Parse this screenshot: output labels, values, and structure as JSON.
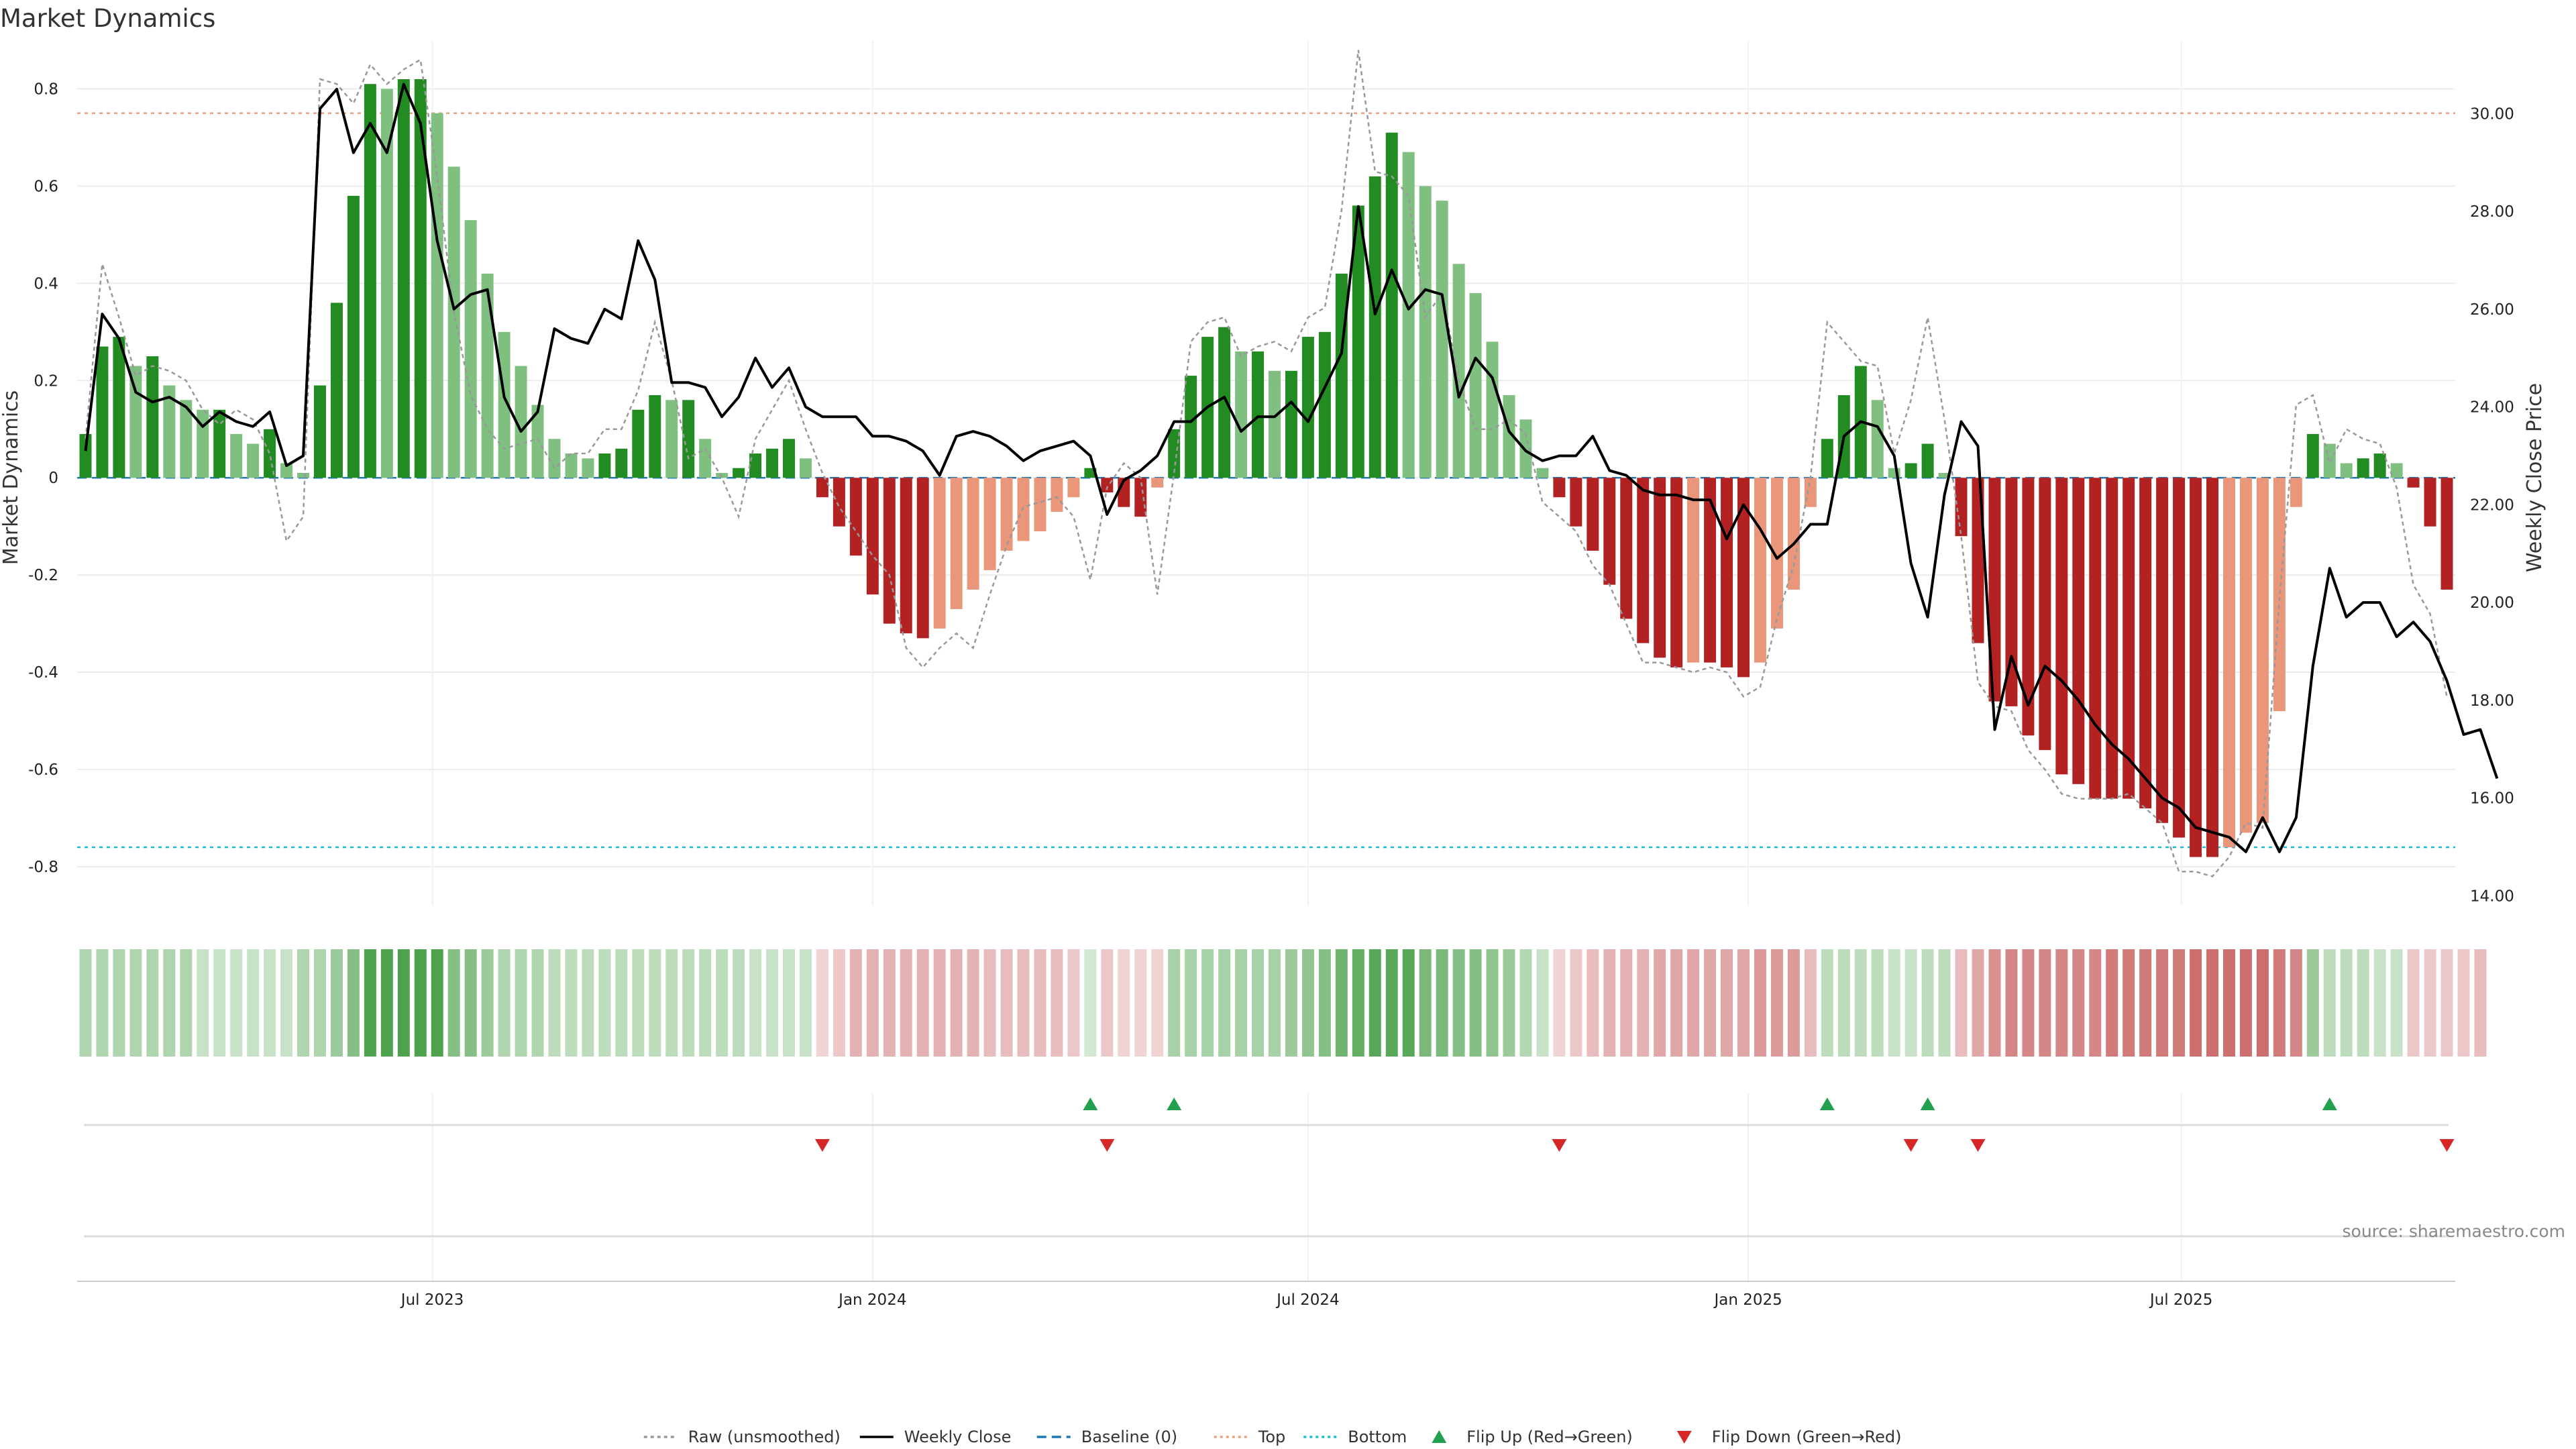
{
  "chart_data": {
    "type": "bar",
    "title": "Market Dynamics",
    "ylabel": "Market Dynamics",
    "y2label": "Weekly Close Price",
    "ylim": [
      -0.88,
      0.9
    ],
    "y2lim": [
      13.8,
      31.5
    ],
    "yticks": [
      "0.8",
      "0.6",
      "0.4",
      "0.2",
      "0",
      "-0.2",
      "-0.4",
      "-0.6",
      "-0.8"
    ],
    "y2ticks": [
      "30.00",
      "28.00",
      "26.00",
      "24.00",
      "22.00",
      "20.00",
      "18.00",
      "16.00",
      "14.00"
    ],
    "xticks": [
      {
        "label": "Jul 2023",
        "date": "2023-07-01"
      },
      {
        "label": "Jan 2024",
        "date": "2024-01-01"
      },
      {
        "label": "Jul 2024",
        "date": "2024-07-01"
      },
      {
        "label": "Jan 2025",
        "date": "2025-01-01"
      },
      {
        "label": "Jul 2025",
        "date": "2025-07-01"
      }
    ],
    "first_week": "2023-02-06",
    "top": 0.75,
    "bottom": -0.76,
    "baseline": 0,
    "grid": true,
    "legend_position": "bottom",
    "source": "source: sharemaestro.com",
    "colors": {
      "strong_up": "#228b22",
      "weak_up": "#7fbf7f",
      "strong_down": "#b22222",
      "weak_down": "#e9967a",
      "raw_line": "#999999",
      "close_line": "#000000",
      "baseline": "#1f77b4",
      "top_line": "#e8a27c",
      "bottom_line": "#17becf",
      "flip_up": "#22a050",
      "flip_down": "#d62728"
    },
    "bars": [
      0.09,
      0.27,
      0.29,
      0.23,
      0.25,
      0.19,
      0.16,
      0.14,
      0.14,
      0.09,
      0.07,
      0.1,
      0.03,
      0.01,
      0.19,
      0.36,
      0.58,
      0.81,
      0.8,
      0.82,
      0.82,
      0.75,
      0.64,
      0.53,
      0.42,
      0.3,
      0.23,
      0.15,
      0.08,
      0.05,
      0.04,
      0.05,
      0.06,
      0.14,
      0.17,
      0.16,
      0.16,
      0.08,
      0.01,
      0.02,
      0.05,
      0.06,
      0.08,
      0.04,
      -0.04,
      -0.1,
      -0.16,
      -0.24,
      -0.3,
      -0.32,
      -0.33,
      -0.31,
      -0.27,
      -0.23,
      -0.19,
      -0.15,
      -0.13,
      -0.11,
      -0.07,
      -0.04,
      0.02,
      -0.03,
      -0.06,
      -0.08,
      -0.02,
      0.1,
      0.21,
      0.29,
      0.31,
      0.26,
      0.26,
      0.22,
      0.22,
      0.29,
      0.3,
      0.42,
      0.56,
      0.62,
      0.71,
      0.67,
      0.6,
      0.57,
      0.44,
      0.38,
      0.28,
      0.17,
      0.12,
      0.02,
      -0.04,
      -0.1,
      -0.15,
      -0.22,
      -0.29,
      -0.34,
      -0.37,
      -0.39,
      -0.38,
      -0.38,
      -0.39,
      -0.41,
      -0.38,
      -0.31,
      -0.23,
      -0.06,
      0.08,
      0.17,
      0.23,
      0.16,
      0.02,
      0.03,
      0.07,
      0.01,
      -0.12,
      -0.34,
      -0.46,
      -0.47,
      -0.53,
      -0.56,
      -0.61,
      -0.63,
      -0.66,
      -0.66,
      -0.66,
      -0.68,
      -0.71,
      -0.74,
      -0.78,
      -0.78,
      -0.76,
      -0.73,
      -0.71,
      -0.48,
      -0.06,
      0.09,
      0.07,
      0.03,
      0.04,
      0.05,
      0.03,
      -0.02,
      -0.1,
      -0.23
    ],
    "raw": [
      0.08,
      0.44,
      0.33,
      0.21,
      0.23,
      0.22,
      0.2,
      0.14,
      0.11,
      0.14,
      0.12,
      0.05,
      -0.13,
      -0.08,
      0.82,
      0.81,
      0.77,
      0.85,
      0.81,
      0.84,
      0.86,
      0.62,
      0.34,
      0.17,
      0.1,
      0.06,
      0.07,
      0.08,
      0.02,
      0.05,
      0.05,
      0.1,
      0.1,
      0.18,
      0.32,
      0.2,
      0.04,
      0.06,
      0.0,
      -0.08,
      0.08,
      0.14,
      0.2,
      0.1,
      0.01,
      -0.06,
      -0.11,
      -0.16,
      -0.2,
      -0.35,
      -0.39,
      -0.35,
      -0.32,
      -0.35,
      -0.24,
      -0.14,
      -0.06,
      -0.05,
      -0.04,
      -0.08,
      -0.21,
      -0.02,
      0.03,
      0.0,
      -0.24,
      0.01,
      0.28,
      0.32,
      0.33,
      0.25,
      0.27,
      0.28,
      0.26,
      0.33,
      0.35,
      0.55,
      0.88,
      0.63,
      0.62,
      0.58,
      0.33,
      0.38,
      0.2,
      0.1,
      0.1,
      0.12,
      0.09,
      -0.05,
      -0.08,
      -0.11,
      -0.18,
      -0.22,
      -0.3,
      -0.38,
      -0.38,
      -0.39,
      -0.4,
      -0.39,
      -0.4,
      -0.45,
      -0.43,
      -0.29,
      -0.18,
      0.0,
      0.32,
      0.28,
      0.24,
      0.23,
      0.05,
      0.16,
      0.33,
      0.12,
      -0.12,
      -0.42,
      -0.47,
      -0.48,
      -0.56,
      -0.6,
      -0.65,
      -0.66,
      -0.66,
      -0.66,
      -0.65,
      -0.68,
      -0.71,
      -0.81,
      -0.81,
      -0.82,
      -0.78,
      -0.71,
      -0.72,
      -0.25,
      0.15,
      0.17,
      0.03,
      0.1,
      0.08,
      0.07,
      -0.02,
      -0.22,
      -0.28,
      -0.45
    ],
    "close": [
      23.1,
      25.9,
      25.4,
      24.3,
      24.1,
      24.2,
      24.0,
      23.6,
      23.9,
      23.7,
      23.6,
      23.9,
      22.8,
      23.0,
      30.1,
      30.5,
      29.2,
      29.8,
      29.2,
      30.6,
      29.8,
      27.4,
      26.0,
      26.3,
      26.4,
      24.2,
      23.5,
      23.9,
      25.6,
      25.4,
      25.3,
      26.0,
      25.8,
      27.4,
      26.6,
      24.5,
      24.5,
      24.4,
      23.8,
      24.2,
      25.0,
      24.4,
      24.8,
      24.0,
      23.8,
      23.8,
      23.8,
      23.4,
      23.4,
      23.3,
      23.1,
      22.6,
      23.4,
      23.5,
      23.4,
      23.2,
      22.9,
      23.1,
      23.2,
      23.3,
      23.0,
      21.8,
      22.5,
      22.7,
      23.0,
      23.7,
      23.7,
      24.0,
      24.2,
      23.5,
      23.8,
      23.8,
      24.1,
      23.7,
      24.4,
      25.1,
      28.1,
      25.9,
      26.8,
      26.0,
      26.4,
      26.3,
      24.2,
      25.0,
      24.6,
      23.5,
      23.1,
      22.9,
      23.0,
      23.0,
      23.4,
      22.7,
      22.6,
      22.3,
      22.2,
      22.2,
      22.1,
      22.1,
      21.3,
      22.0,
      21.5,
      20.9,
      21.2,
      21.6,
      21.6,
      23.4,
      23.7,
      23.6,
      23.0,
      20.8,
      19.7,
      22.2,
      23.7,
      23.2,
      17.4,
      18.9,
      17.9,
      18.7,
      18.4,
      18.0,
      17.5,
      17.1,
      16.8,
      16.4,
      16.0,
      15.8,
      15.4,
      15.3,
      15.2,
      14.9,
      15.6,
      14.9,
      15.6,
      18.7,
      20.7,
      19.7,
      20.0,
      20.0,
      19.3,
      19.6,
      19.2,
      18.4,
      17.3,
      17.4,
      16.4
    ],
    "regime": [
      0.36,
      0.36,
      0.36,
      0.36,
      0.36,
      0.36,
      0.36,
      0.25,
      0.25,
      0.25,
      0.25,
      0.25,
      0.25,
      0.36,
      0.36,
      0.45,
      0.55,
      0.8,
      0.8,
      0.8,
      0.8,
      0.8,
      0.55,
      0.55,
      0.45,
      0.36,
      0.36,
      0.36,
      0.3,
      0.3,
      0.3,
      0.3,
      0.3,
      0.3,
      0.3,
      0.3,
      0.3,
      0.3,
      0.3,
      0.3,
      0.25,
      0.25,
      0.25,
      0.25,
      0.2,
      0.25,
      0.35,
      0.35,
      0.35,
      0.35,
      0.35,
      0.35,
      0.35,
      0.35,
      0.3,
      0.3,
      0.3,
      0.3,
      0.3,
      0.25,
      0.2,
      0.25,
      0.2,
      0.2,
      0.2,
      0.4,
      0.4,
      0.4,
      0.4,
      0.4,
      0.4,
      0.4,
      0.45,
      0.5,
      0.55,
      0.65,
      0.7,
      0.75,
      0.75,
      0.75,
      0.6,
      0.6,
      0.55,
      0.55,
      0.5,
      0.45,
      0.35,
      0.25,
      0.2,
      0.25,
      0.3,
      0.35,
      0.35,
      0.35,
      0.4,
      0.4,
      0.4,
      0.4,
      0.4,
      0.4,
      0.45,
      0.45,
      0.45,
      0.3,
      0.3,
      0.3,
      0.3,
      0.3,
      0.25,
      0.25,
      0.3,
      0.3,
      0.3,
      0.4,
      0.5,
      0.55,
      0.55,
      0.55,
      0.55,
      0.55,
      0.55,
      0.6,
      0.6,
      0.6,
      0.6,
      0.6,
      0.65,
      0.65,
      0.65,
      0.65,
      0.65,
      0.6,
      0.55,
      0.45,
      0.3,
      0.3,
      0.3,
      0.25,
      0.25,
      0.25,
      0.25,
      0.25,
      0.25,
      0.3
    ],
    "flips_up": [
      60,
      65,
      104,
      110,
      134
    ],
    "flips_down": [
      44,
      61,
      88,
      109,
      113,
      141
    ],
    "legend": [
      {
        "label": "Raw (unsmoothed)",
        "kind": "line",
        "color": "#999999",
        "dash": "5,5"
      },
      {
        "label": "Weekly Close",
        "kind": "line",
        "color": "#000000",
        "dash": ""
      },
      {
        "label": "Baseline (0)",
        "kind": "line",
        "color": "#1f77b4",
        "dash": "14,8"
      },
      {
        "label": "Top",
        "kind": "line",
        "color": "#e8a27c",
        "dash": "4,5"
      },
      {
        "label": "Bottom",
        "kind": "line",
        "color": "#17becf",
        "dash": "4,5"
      },
      {
        "label": "Flip Up (Red→Green)",
        "kind": "tri-up",
        "color": "#22a050"
      },
      {
        "label": "Flip Down (Green→Red)",
        "kind": "tri-down",
        "color": "#d62728"
      }
    ]
  }
}
